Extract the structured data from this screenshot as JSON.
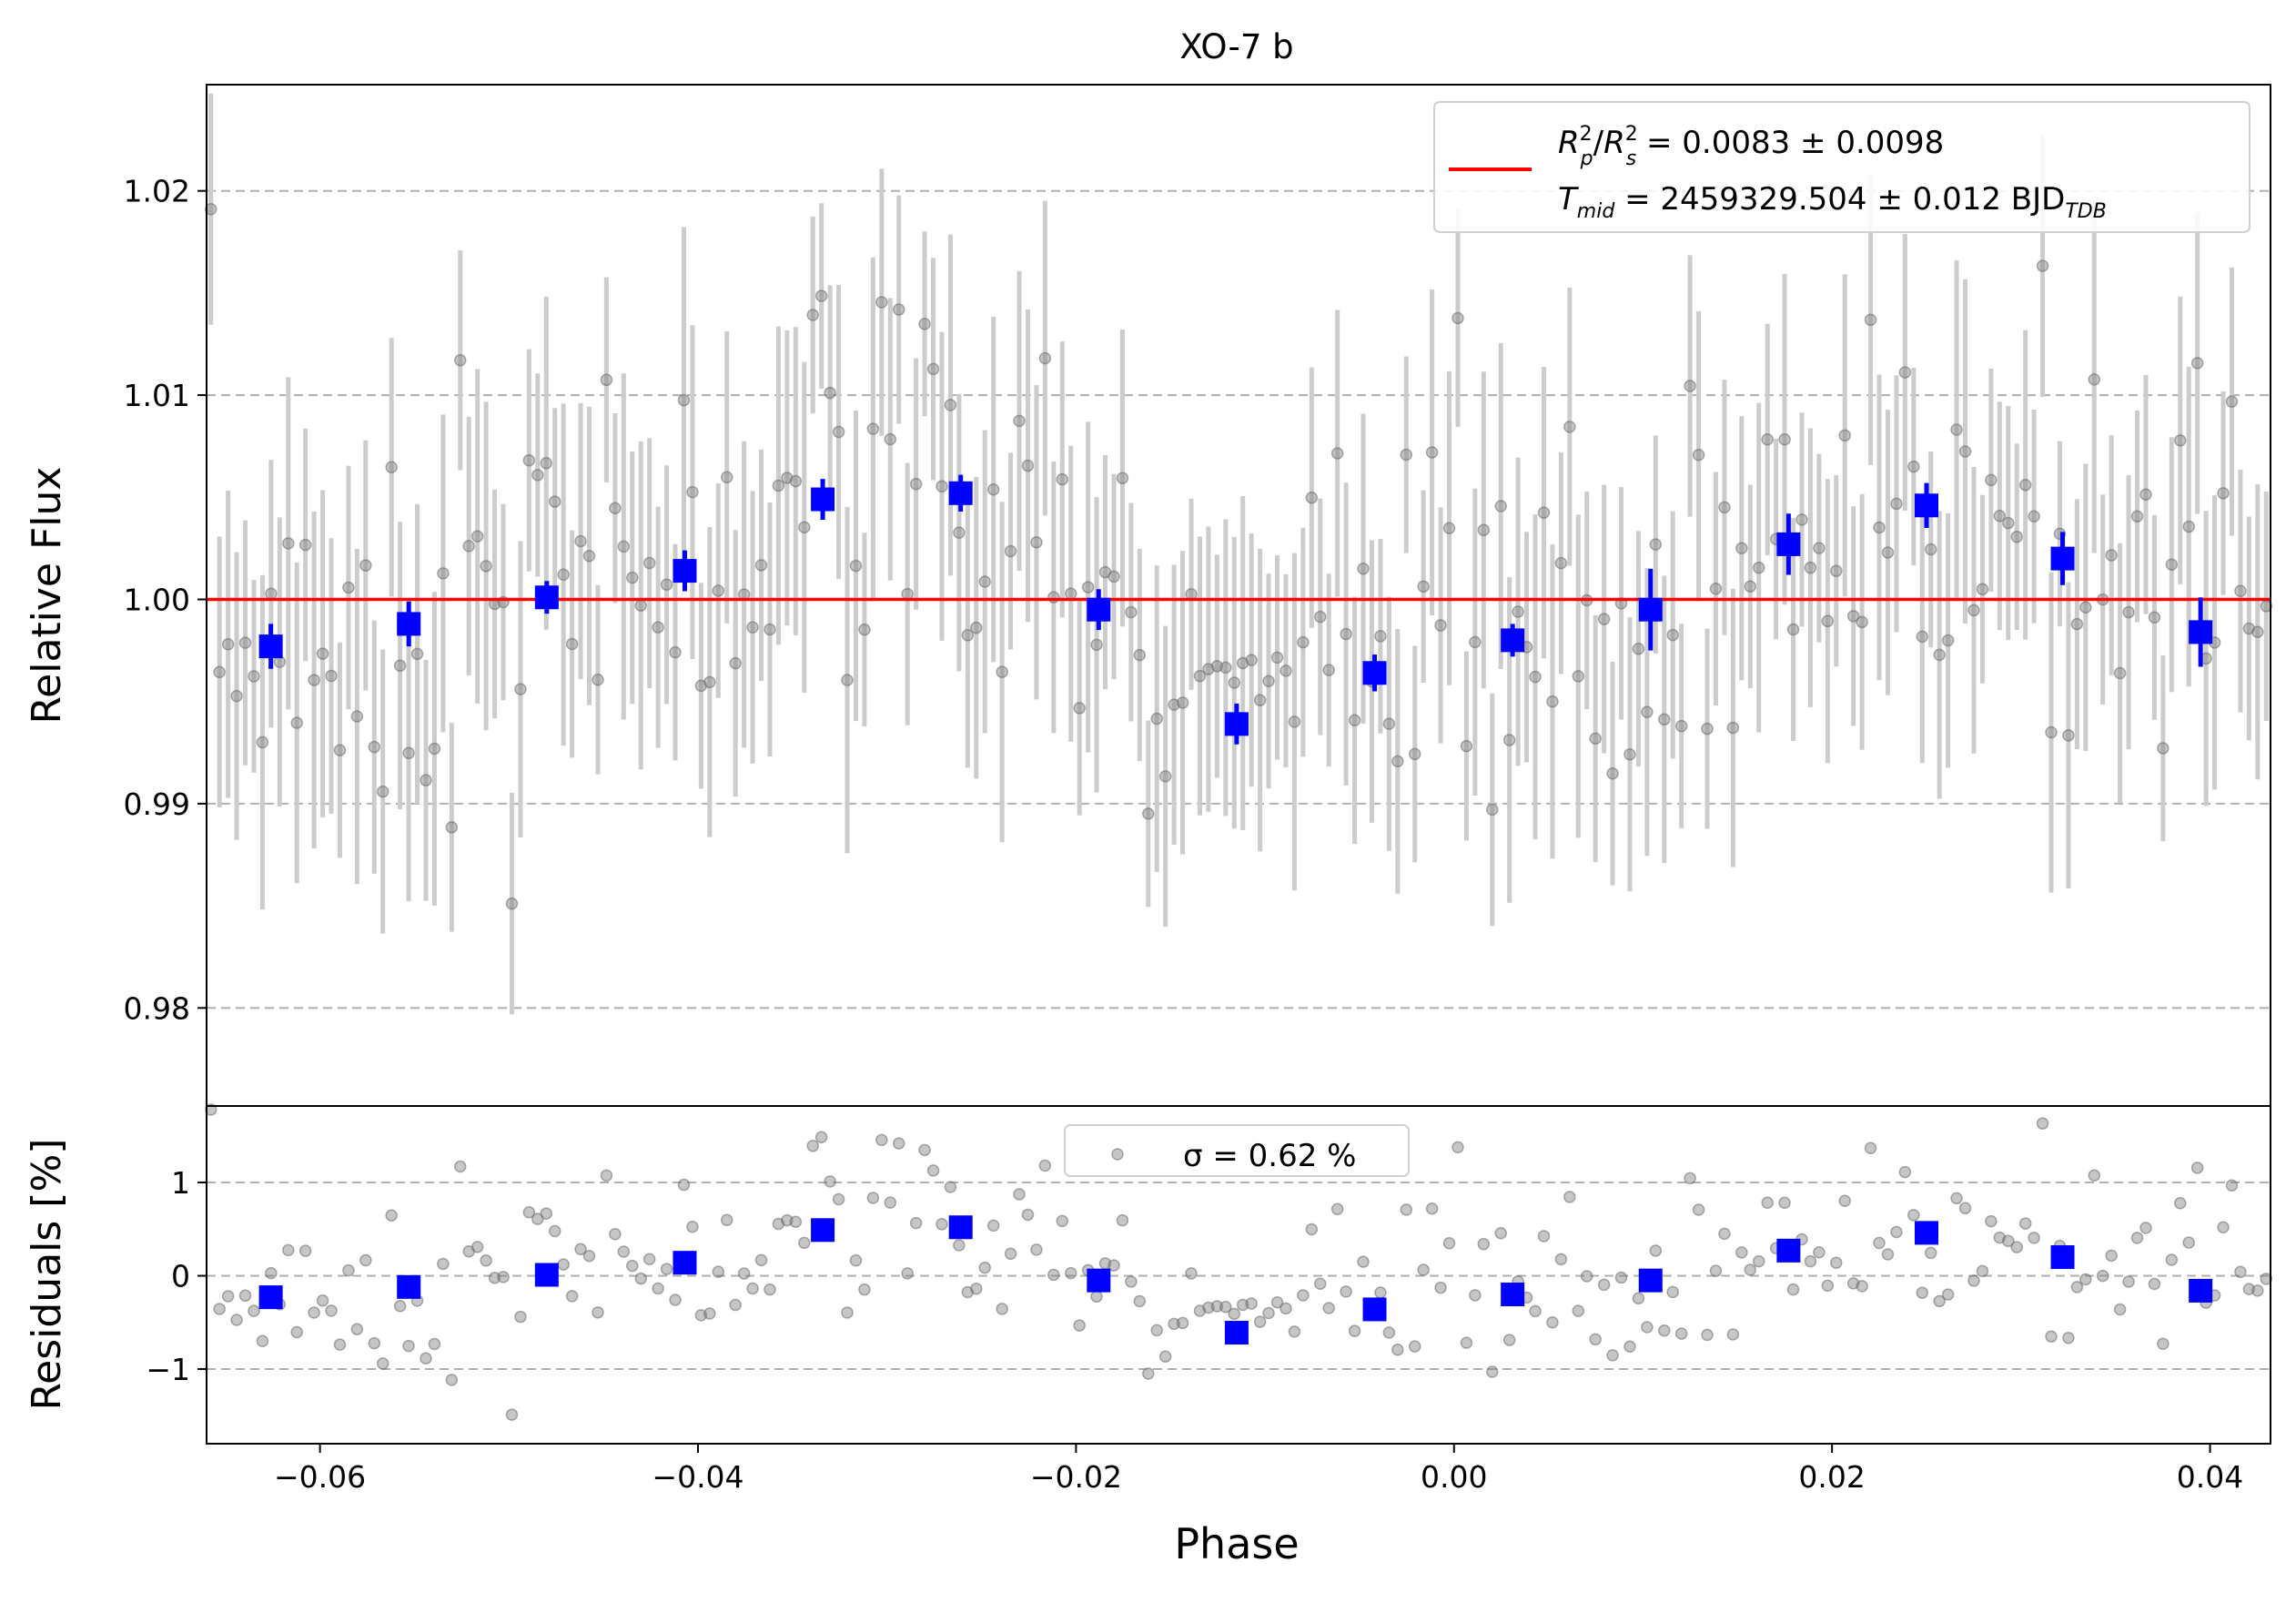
{
  "figure": {
    "title": "XO-7 b",
    "colors": {
      "raw_points": "#808080",
      "raw_errorbars": "#cccccc",
      "binned": "#0000ff",
      "model": "#ff0000",
      "grid": "#b0b0b0"
    }
  },
  "chart_data": [
    {
      "type": "scatter",
      "panel": "light-curve",
      "title": "XO-7 b",
      "xlabel": "",
      "ylabel": "Relative Flux",
      "xlim": [
        -0.066,
        0.0432
      ],
      "ylim": [
        0.9752,
        1.0252
      ],
      "yticks": [
        0.98,
        0.99,
        1.0,
        1.01,
        1.02
      ],
      "ytick_labels": [
        "0.98",
        "0.99",
        "1.00",
        "1.01",
        "1.02"
      ],
      "grid": "horizontal dashed",
      "legend": {
        "placement": "top-right",
        "line1": {
          "r1": "R",
          "sub1": "p",
          "sup1": "2",
          "slash": "/",
          "r2": "R",
          "sub2": "s",
          "sup2": "2",
          "rest": " = 0.0083 ± 0.0098"
        },
        "line2": {
          "t": "T",
          "sub": "mid",
          "rest": " = 2459329.504 ± 0.012 BJD",
          "bjd_sub": "TDB"
        }
      },
      "model": {
        "name": "",
        "value": 1.0
      },
      "binned": {
        "x": [
          -0.0626,
          -0.0553,
          -0.048,
          -0.0407,
          -0.0334,
          -0.0261,
          -0.0188,
          -0.0115,
          -0.0042,
          0.0031,
          0.0104,
          0.0177,
          0.025,
          0.0322,
          0.0395
        ],
        "y": [
          0.9977,
          0.9988,
          1.0001,
          1.0014,
          1.0049,
          1.0052,
          0.9995,
          0.9939,
          0.9964,
          0.998,
          0.9995,
          1.0027,
          1.0046,
          1.002,
          0.9984
        ],
        "err": [
          0.0011,
          0.0011,
          0.0008,
          0.001,
          0.001,
          0.0009,
          0.001,
          0.001,
          0.0009,
          0.0008,
          0.002,
          0.0015,
          0.0011,
          0.0013,
          0.0017
        ]
      }
    },
    {
      "type": "scatter",
      "panel": "residuals",
      "xlabel": "Phase",
      "ylabel": "Residuals [%]",
      "xlim": [
        -0.066,
        0.0432
      ],
      "ylim": [
        -1.8,
        1.82
      ],
      "xticks": [
        -0.06,
        -0.04,
        -0.02,
        0.0,
        0.02,
        0.04
      ],
      "xtick_labels": [
        "−0.06",
        "−0.04",
        "−0.02",
        "0.00",
        "0.02",
        "0.04"
      ],
      "yticks": [
        -1,
        0,
        1
      ],
      "ytick_labels": [
        "−1",
        "0",
        "1"
      ],
      "grid": "horizontal dashed",
      "legend": {
        "placement": "top-center",
        "label": "σ = 0.62 %"
      },
      "binned": {
        "x": [
          -0.0626,
          -0.0553,
          -0.048,
          -0.0407,
          -0.0334,
          -0.0261,
          -0.0188,
          -0.0115,
          -0.0042,
          0.0031,
          0.0104,
          0.0177,
          0.025,
          0.0322,
          0.0395
        ],
        "y": [
          -0.23,
          -0.12,
          0.01,
          0.14,
          0.49,
          0.52,
          -0.05,
          -0.61,
          -0.36,
          -0.2,
          -0.05,
          0.27,
          0.46,
          0.2,
          -0.16
        ]
      }
    }
  ]
}
